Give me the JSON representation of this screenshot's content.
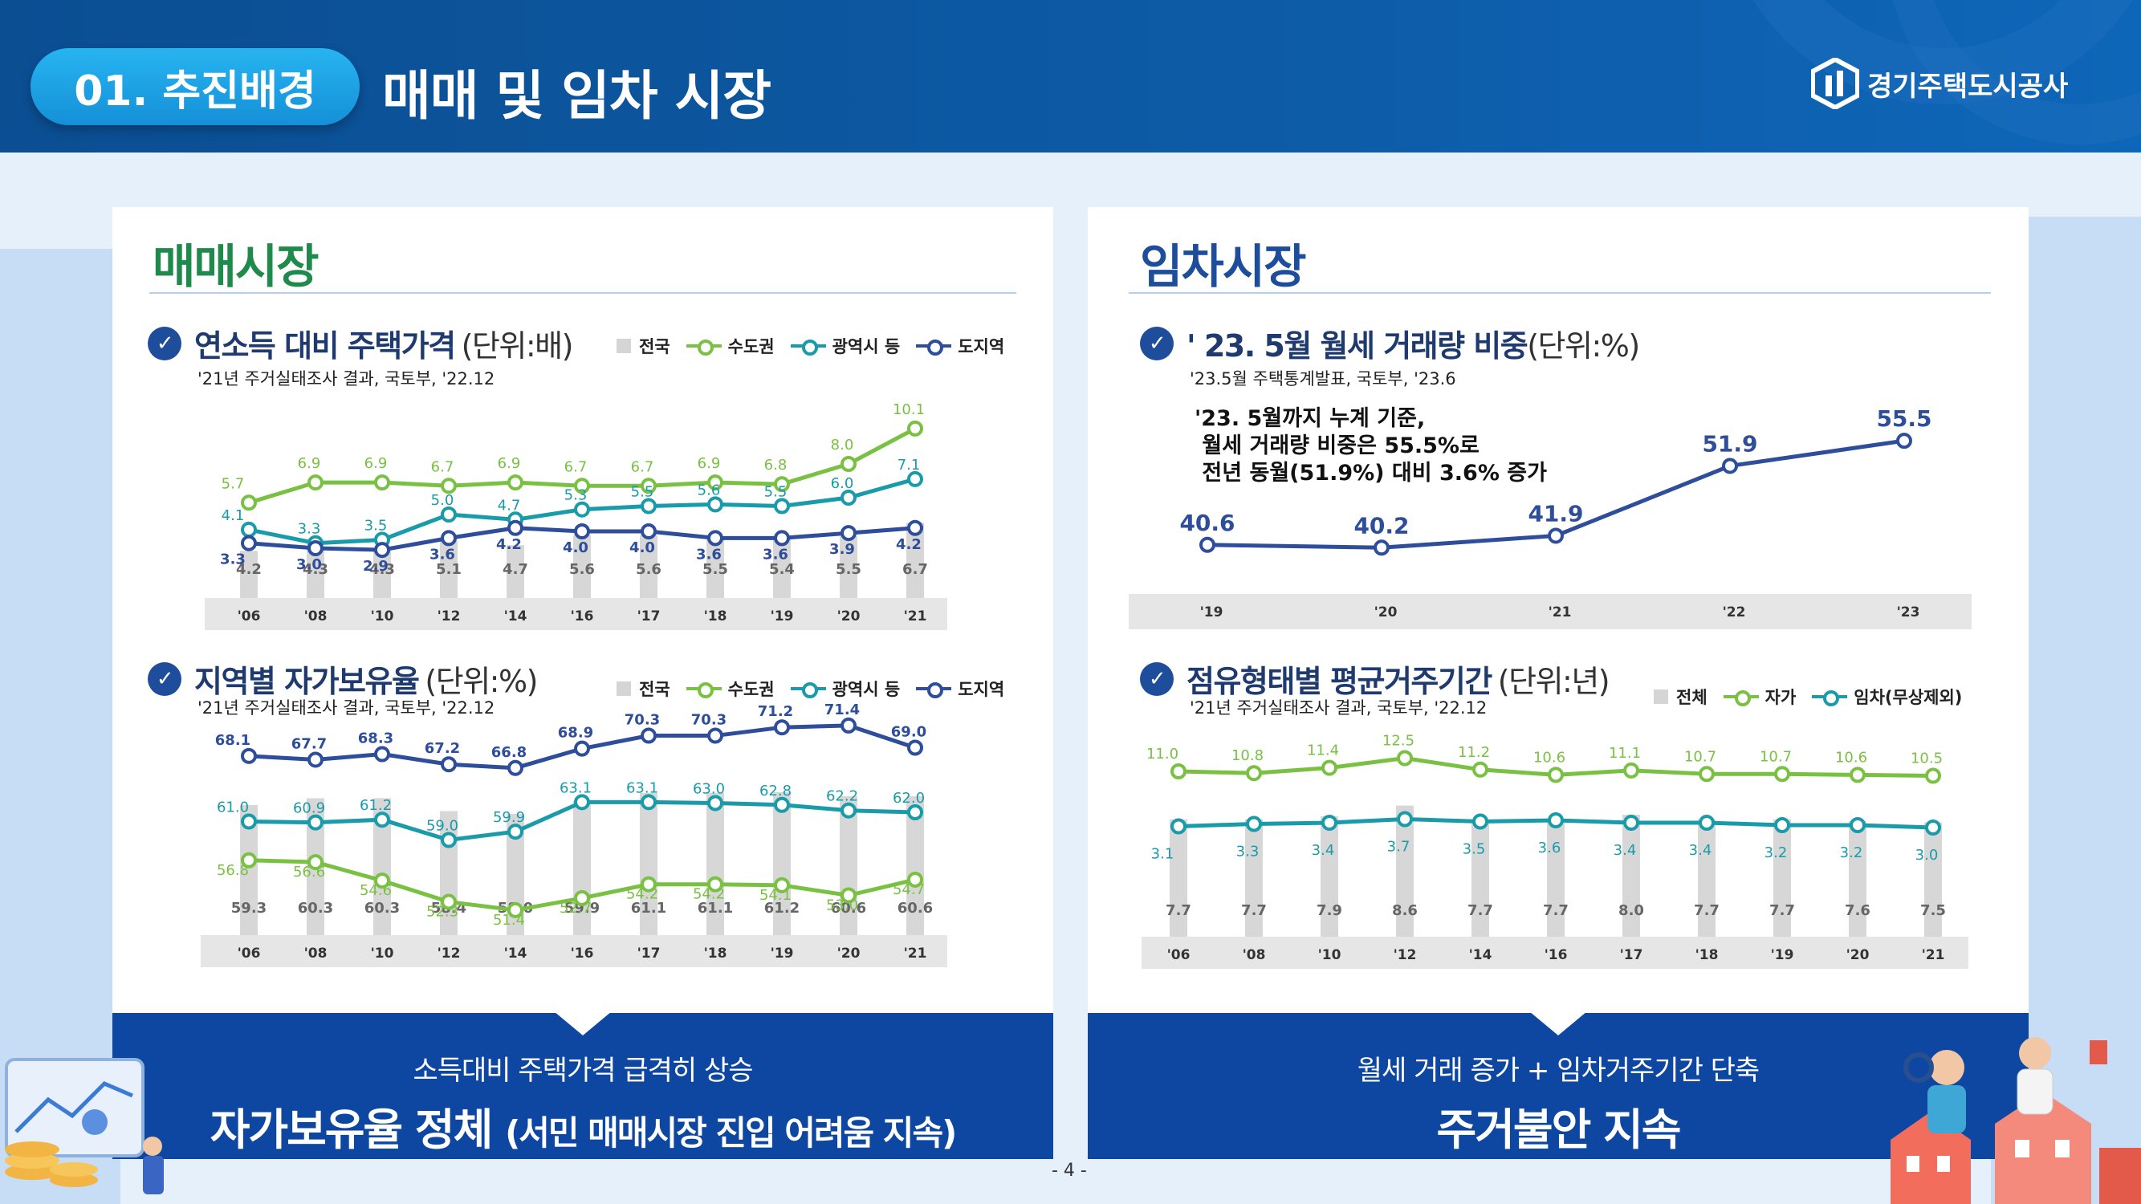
{
  "header": {
    "section_label": "01. 추진배경",
    "title": "매매 및 임차 시장",
    "org_name": "경기주택도시공사"
  },
  "left": {
    "title": "매매시장",
    "chart1": {
      "heading": "연소득 대비 주택가격",
      "unit": "(단위:배)",
      "source": "'21년 주거실태조사 결과, 국토부, '22.12"
    },
    "chart2": {
      "heading": "지역별 자가보유율",
      "unit": "(단위:%)",
      "source": "'21년 주거실태조사 결과, 국토부, '22.12"
    },
    "legend": [
      "전국",
      "수도권",
      "광역시 등",
      "도지역"
    ],
    "banner_line1": "소득대비 주택가격 급격히 상승",
    "banner_line2_main": "자가보유율 정체",
    "banner_line2_sub": "(서민 매매시장 진입 어려움 지속)"
  },
  "right": {
    "title": "임차시장",
    "chart3": {
      "heading": "' 23. 5월 월세 거래량 비중",
      "unit": "(단위:%)",
      "source": "'23.5월 주택통계발표, 국토부, '23.6",
      "note": "'23. 5월까지 누계 기준,\n 월세 거래량 비중은 55.5%로\n 전년 동월(51.9%) 대비 3.6% 증가"
    },
    "chart4": {
      "heading": "점유형태별 평균거주기간",
      "unit": "(단위:년)",
      "source": "'21년 주거실태조사 결과, 국토부, '22.12",
      "legend": [
        "전체",
        "자가",
        "임차(무상제외)"
      ]
    },
    "banner_line1": "월세 거래 증가 + 임차거주기간 단축",
    "banner_line2": "주거불안 지속"
  },
  "page_number": "- 4 -",
  "colors": {
    "green": "#7ac143",
    "teal": "#1a9ba9",
    "navy": "#2e4d9a",
    "bar": "#d7d7d7",
    "title_green": "#1f8a4c",
    "title_navy": "#1e4d9b",
    "banner": "#0d47a1"
  },
  "chart_data": [
    {
      "type": "bar",
      "title": "연소득 대비 주택가격 (단위:배)",
      "categories": [
        "'06",
        "'08",
        "'10",
        "'12",
        "'14",
        "'16",
        "'17",
        "'18",
        "'19",
        "'20",
        "'21"
      ],
      "series": [
        {
          "name": "전국",
          "kind": "bar",
          "values": [
            4.2,
            4.3,
            4.3,
            5.1,
            4.7,
            5.6,
            5.6,
            5.5,
            5.4,
            5.5,
            6.7
          ]
        },
        {
          "name": "수도권",
          "kind": "line",
          "values": [
            5.7,
            6.9,
            6.9,
            6.7,
            6.9,
            6.7,
            6.7,
            6.9,
            6.8,
            8.0,
            10.1
          ]
        },
        {
          "name": "광역시 등",
          "kind": "line",
          "values": [
            4.1,
            3.3,
            3.5,
            5.0,
            4.7,
            5.3,
            5.5,
            5.6,
            5.5,
            6.0,
            7.1
          ]
        },
        {
          "name": "도지역",
          "kind": "line",
          "values": [
            3.3,
            3.0,
            2.9,
            3.6,
            4.2,
            4.0,
            4.0,
            3.6,
            3.6,
            3.9,
            4.2
          ]
        }
      ]
    },
    {
      "type": "bar",
      "title": "지역별 자가보유율 (단위:%)",
      "categories": [
        "'06",
        "'08",
        "'10",
        "'12",
        "'14",
        "'16",
        "'17",
        "'18",
        "'19",
        "'20",
        "'21"
      ],
      "series": [
        {
          "name": "전국",
          "kind": "bar",
          "values": [
            59.3,
            60.3,
            60.3,
            58.4,
            58.0,
            59.9,
            61.1,
            61.1,
            61.2,
            60.6,
            60.6
          ]
        },
        {
          "name": "수도권",
          "kind": "line",
          "values": [
            56.8,
            56.6,
            54.6,
            52.3,
            51.4,
            52.7,
            54.2,
            54.2,
            54.1,
            53.0,
            54.7
          ]
        },
        {
          "name": "광역시 등",
          "kind": "line",
          "values": [
            61.0,
            60.9,
            61.2,
            59.0,
            59.9,
            63.1,
            63.1,
            63.0,
            62.8,
            62.2,
            62.0
          ]
        },
        {
          "name": "도지역",
          "kind": "line",
          "values": [
            68.1,
            67.7,
            68.3,
            67.2,
            66.8,
            68.9,
            70.3,
            70.3,
            71.2,
            71.4,
            69.0
          ]
        }
      ]
    },
    {
      "type": "line",
      "title": "' 23. 5월 월세 거래량 비중 (단위:%)",
      "categories": [
        "'19",
        "'20",
        "'21",
        "'22",
        "'23"
      ],
      "series": [
        {
          "name": "월세 거래량 비중",
          "values": [
            40.6,
            40.2,
            41.9,
            51.9,
            55.5
          ]
        }
      ]
    },
    {
      "type": "bar",
      "title": "점유형태별 평균거주기간 (단위:년)",
      "categories": [
        "'06",
        "'08",
        "'10",
        "'12",
        "'14",
        "'16",
        "'17",
        "'18",
        "'19",
        "'20",
        "'21"
      ],
      "series": [
        {
          "name": "전체",
          "kind": "bar",
          "values": [
            7.7,
            7.7,
            7.9,
            8.6,
            7.7,
            7.7,
            8.0,
            7.7,
            7.7,
            7.6,
            7.5
          ]
        },
        {
          "name": "자가",
          "kind": "line",
          "values": [
            11.0,
            10.8,
            11.4,
            12.5,
            11.2,
            10.6,
            11.1,
            10.7,
            10.7,
            10.6,
            10.5
          ]
        },
        {
          "name": "임차(무상제외)",
          "kind": "line",
          "values": [
            3.1,
            3.3,
            3.4,
            3.7,
            3.5,
            3.6,
            3.4,
            3.4,
            3.2,
            3.2,
            3.0
          ]
        }
      ]
    }
  ]
}
